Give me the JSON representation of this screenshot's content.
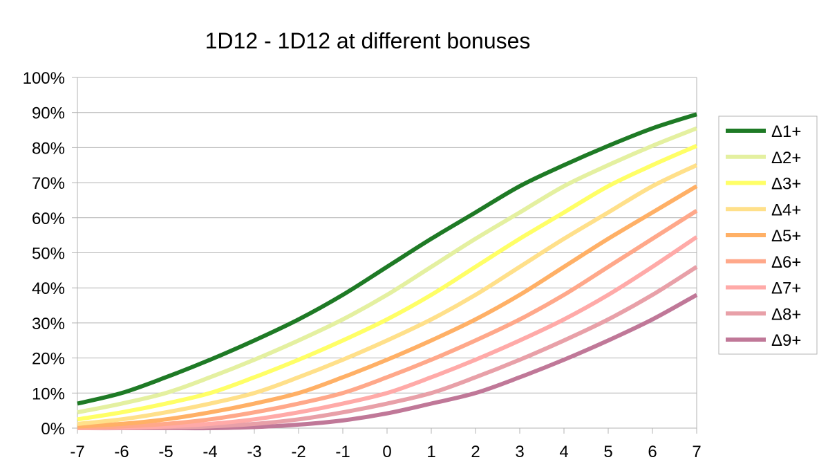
{
  "chart_data": {
    "type": "line",
    "title": "1D12 - 1D12 at different bonuses",
    "xlabel": "",
    "ylabel": "",
    "x": [
      -7,
      -6,
      -5,
      -4,
      -3,
      -2,
      -1,
      0,
      1,
      2,
      3,
      4,
      5,
      6,
      7
    ],
    "xlim": [
      -7,
      7
    ],
    "ylim": [
      0,
      1
    ],
    "y_ticks": [
      "0%",
      "10%",
      "20%",
      "30%",
      "40%",
      "50%",
      "60%",
      "70%",
      "80%",
      "90%",
      "100%"
    ],
    "x_ticks": [
      "-7",
      "-6",
      "-5",
      "-4",
      "-3",
      "-2",
      "-1",
      "0",
      "1",
      "2",
      "3",
      "4",
      "5",
      "6",
      "7"
    ],
    "grid": "horizontal",
    "legend": "right",
    "series": [
      {
        "name": "Δ1+",
        "color": "#1e7a25",
        "values": [
          0.07,
          0.1,
          0.145,
          0.195,
          0.25,
          0.31,
          0.38,
          0.46,
          0.54,
          0.615,
          0.69,
          0.75,
          0.805,
          0.855,
          0.895
        ]
      },
      {
        "name": "Δ2+",
        "color": "#e4f0a0",
        "values": [
          0.045,
          0.07,
          0.1,
          0.145,
          0.195,
          0.25,
          0.31,
          0.38,
          0.46,
          0.54,
          0.615,
          0.69,
          0.75,
          0.805,
          0.855
        ]
      },
      {
        "name": "Δ3+",
        "color": "#ffff66",
        "values": [
          0.025,
          0.045,
          0.07,
          0.1,
          0.145,
          0.195,
          0.25,
          0.31,
          0.38,
          0.46,
          0.54,
          0.615,
          0.69,
          0.75,
          0.805
        ]
      },
      {
        "name": "Δ4+",
        "color": "#ffe08a",
        "values": [
          0.012,
          0.025,
          0.045,
          0.07,
          0.1,
          0.145,
          0.195,
          0.25,
          0.31,
          0.38,
          0.46,
          0.54,
          0.615,
          0.69,
          0.75
        ]
      },
      {
        "name": "Δ5+",
        "color": "#ffb066",
        "values": [
          0.005,
          0.012,
          0.025,
          0.045,
          0.07,
          0.1,
          0.145,
          0.195,
          0.25,
          0.31,
          0.38,
          0.46,
          0.54,
          0.615,
          0.69
        ]
      },
      {
        "name": "Δ6+",
        "color": "#ffa88a",
        "values": [
          0.002,
          0.005,
          0.012,
          0.025,
          0.045,
          0.07,
          0.1,
          0.145,
          0.195,
          0.25,
          0.31,
          0.38,
          0.46,
          0.54,
          0.62
        ]
      },
      {
        "name": "Δ7+",
        "color": "#ffaaa8",
        "values": [
          0.0,
          0.002,
          0.005,
          0.012,
          0.025,
          0.045,
          0.07,
          0.1,
          0.145,
          0.195,
          0.25,
          0.31,
          0.38,
          0.46,
          0.545
        ]
      },
      {
        "name": "Δ8+",
        "color": "#e8a0a8",
        "values": [
          0.0,
          0.0,
          0.002,
          0.005,
          0.012,
          0.025,
          0.045,
          0.07,
          0.1,
          0.145,
          0.195,
          0.25,
          0.31,
          0.38,
          0.46
        ]
      },
      {
        "name": "Δ9+",
        "color": "#c07898",
        "values": [
          0.0,
          0.0,
          0.0,
          0.0,
          0.003,
          0.01,
          0.022,
          0.042,
          0.07,
          0.1,
          0.145,
          0.195,
          0.25,
          0.31,
          0.38
        ]
      }
    ]
  }
}
